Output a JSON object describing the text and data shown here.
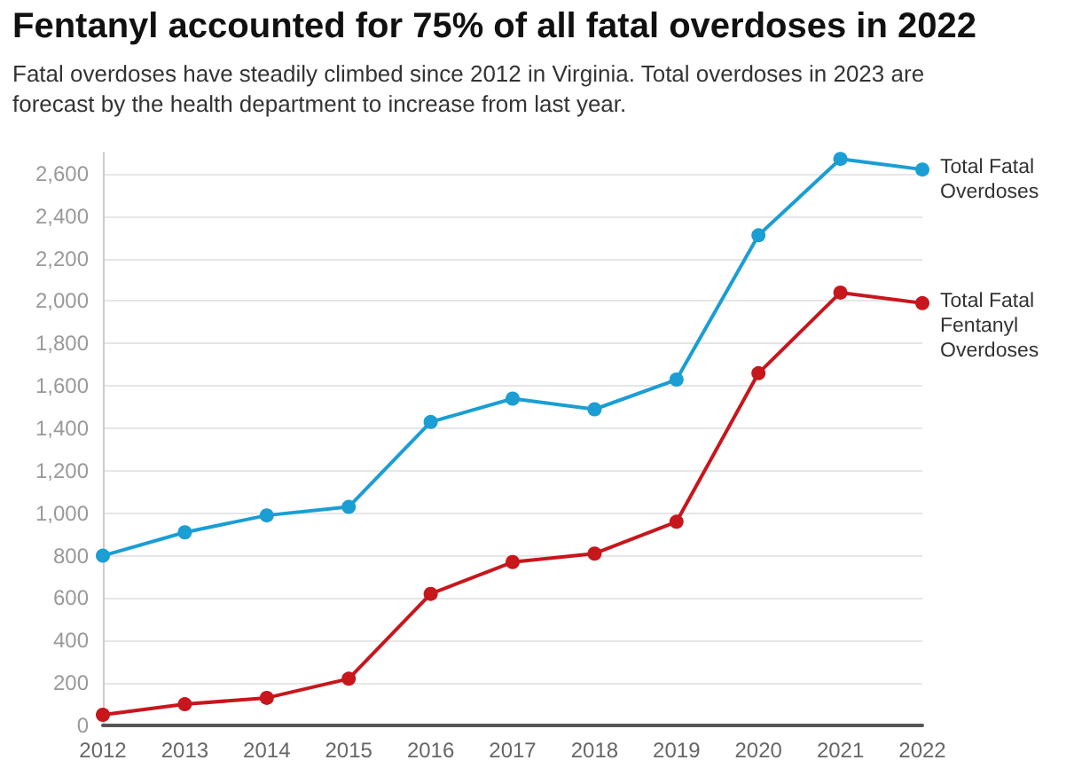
{
  "chart_data": {
    "type": "line",
    "title": "Fentanyl accounted for 75% of all fatal overdoses in 2022",
    "subtitle": "Fatal overdoses have steadily climbed since 2012 in Virginia. Total overdoses in 2023 are\nforecast by the health department to increase from last year.",
    "categories": [
      "2012",
      "2013",
      "2014",
      "2015",
      "2016",
      "2017",
      "2018",
      "2019",
      "2020",
      "2021",
      "2022"
    ],
    "series": [
      {
        "name": "Total Fatal\nOverdoses",
        "color": "#1a9ed4",
        "values": [
          800,
          910,
          990,
          1030,
          1430,
          1540,
          1490,
          1630,
          2310,
          2670,
          2620
        ]
      },
      {
        "name": "Total Fatal\nFentanyl\nOverdoses",
        "color": "#c7161c",
        "values": [
          50,
          100,
          130,
          220,
          620,
          770,
          810,
          960,
          1660,
          2040,
          1990
        ]
      }
    ],
    "ylim": [
      0,
      2700
    ],
    "yticks": [
      0,
      200,
      400,
      600,
      800,
      {
        "value": 1000,
        "label": "1,000"
      },
      {
        "value": 1200,
        "label": "1,200"
      },
      {
        "value": 1400,
        "label": "1,400"
      },
      {
        "value": 1600,
        "label": "1,600"
      },
      {
        "value": 1800,
        "label": "1,800"
      },
      {
        "value": 2000,
        "label": "2,000"
      },
      {
        "value": 2200,
        "label": "2,200"
      },
      {
        "value": 2400,
        "label": "2,400"
      },
      {
        "value": 2600,
        "label": "2,600"
      }
    ],
    "grid": "y",
    "legend": false,
    "marker": "circle",
    "line_style": "solid"
  }
}
